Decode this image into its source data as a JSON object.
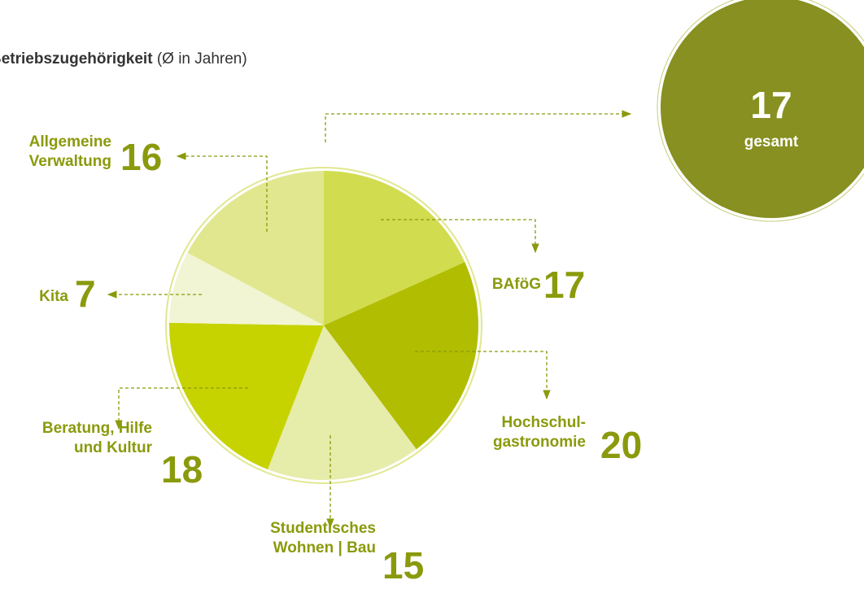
{
  "chart_data": {
    "type": "pie",
    "title": "Betriebszugehörigkeit",
    "subtitle": "(Ø in Jahren)",
    "categories": [
      "BAföG",
      "Hochschul-\ngastronomie",
      "Studentisches\nWohnen | Bau",
      "Beratung, Hilfe\nund Kultur",
      "Kita",
      "Allgemeine\nVerwaltung"
    ],
    "values": [
      17,
      20,
      15,
      18,
      7,
      16
    ],
    "colors": [
      "#d2dc4f",
      "#b1bd00",
      "#e6ecaa",
      "#c6d300",
      "#f1f5d3",
      "#e1e78f"
    ],
    "total": 17,
    "total_label": "gesamt",
    "total_color": "#879020"
  }
}
